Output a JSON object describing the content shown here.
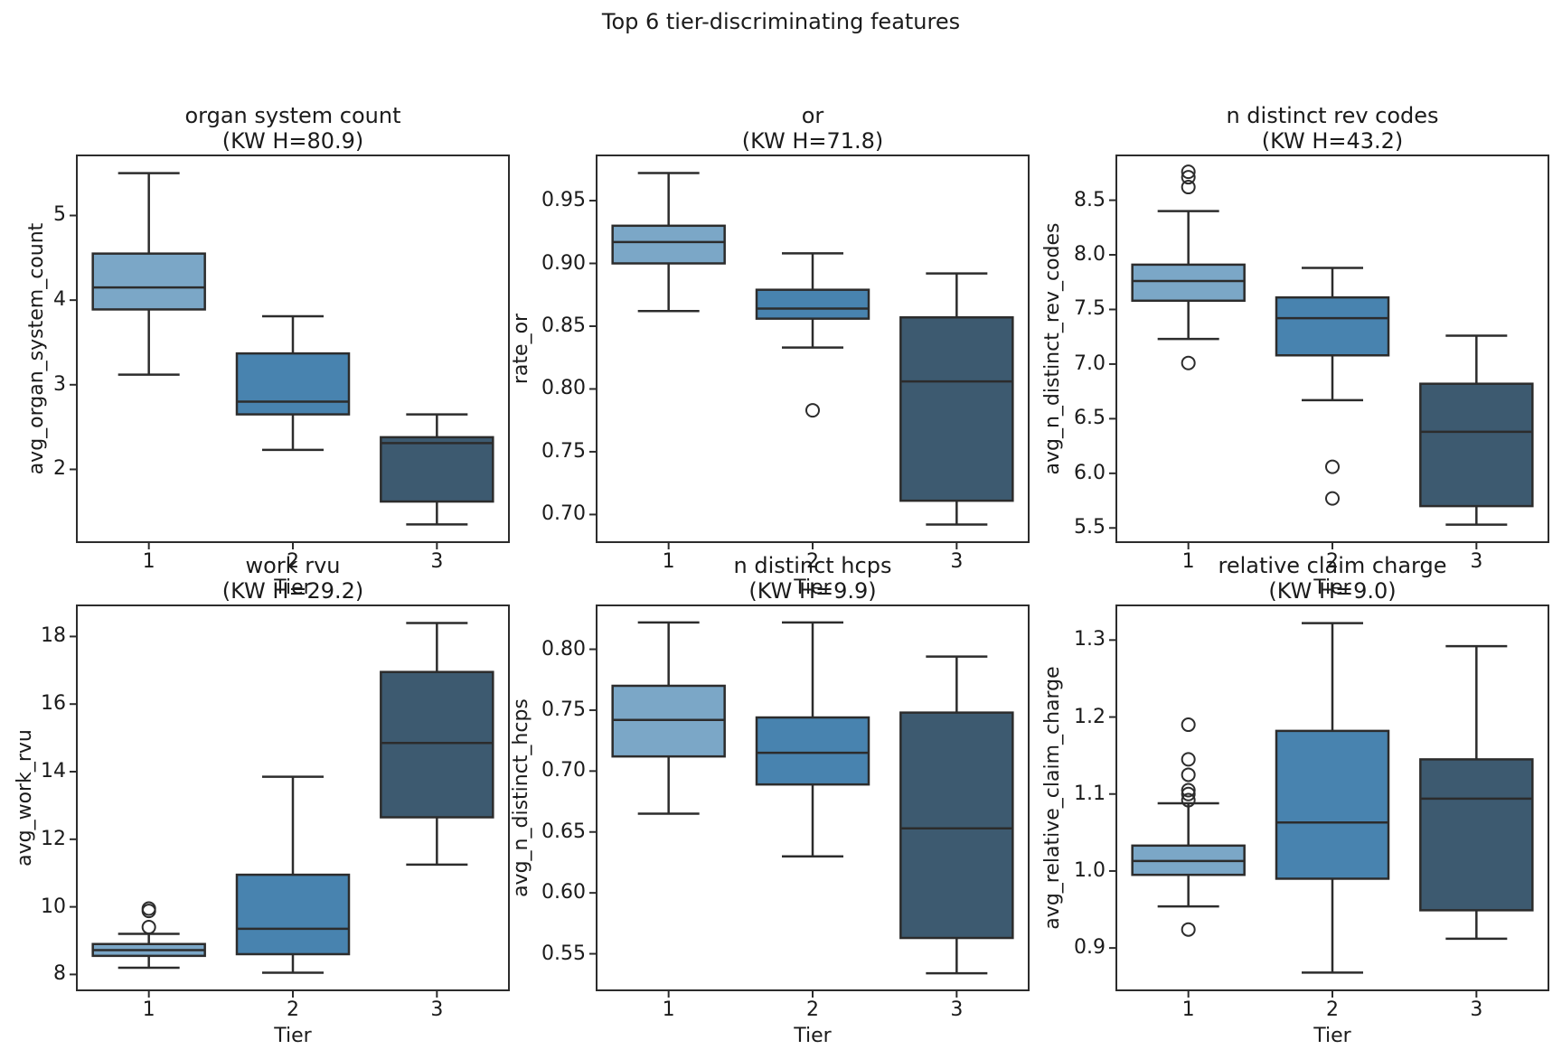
{
  "figure": {
    "suptitle": "Top 6 tier-discriminating features",
    "xlabel": "Tier",
    "tier_labels": [
      "1",
      "2",
      "3"
    ]
  },
  "colors": {
    "tier1": "#7BA7C7",
    "tier2": "#4883AF",
    "tier3": "#3D5A70",
    "line": "#2c2c2c",
    "text": "#1b1b1b",
    "background": "#ffffff"
  },
  "chart_data": [
    {
      "type": "box",
      "title": "organ system count",
      "subtitle": "(KW H=80.9)",
      "kw_h": 80.9,
      "xlabel": "Tier",
      "ylabel": "avg_organ_system_count",
      "categories": [
        "1",
        "2",
        "3"
      ],
      "ylim": [
        1.14,
        5.71
      ],
      "yticks": {
        "values": [
          2,
          3,
          4,
          5
        ],
        "labels": [
          "2",
          "3",
          "4",
          "5"
        ]
      },
      "grid": false,
      "boxes": [
        {
          "tier": "1",
          "whislo": 3.12,
          "q1": 3.89,
          "med": 4.15,
          "q3": 4.55,
          "whishi": 5.5,
          "outliers": []
        },
        {
          "tier": "2",
          "whislo": 2.23,
          "q1": 2.65,
          "med": 2.8,
          "q3": 3.37,
          "whishi": 3.81,
          "outliers": []
        },
        {
          "tier": "3",
          "whislo": 1.35,
          "q1": 1.62,
          "med": 2.31,
          "q3": 2.38,
          "whishi": 2.65,
          "outliers": []
        }
      ]
    },
    {
      "type": "box",
      "title": "or",
      "subtitle": "(KW H=71.8)",
      "kw_h": 71.8,
      "xlabel": "Tier",
      "ylabel": "rate_or",
      "categories": [
        "1",
        "2",
        "3"
      ],
      "ylim": [
        0.678,
        0.986
      ],
      "yticks": {
        "values": [
          0.7,
          0.75,
          0.8,
          0.85,
          0.9,
          0.95
        ],
        "labels": [
          "0.70",
          "0.75",
          "0.80",
          "0.85",
          "0.90",
          "0.95"
        ]
      },
      "grid": false,
      "boxes": [
        {
          "tier": "1",
          "whislo": 0.862,
          "q1": 0.9,
          "med": 0.917,
          "q3": 0.93,
          "whishi": 0.972,
          "outliers": []
        },
        {
          "tier": "2",
          "whislo": 0.833,
          "q1": 0.856,
          "med": 0.864,
          "q3": 0.879,
          "whishi": 0.908,
          "outliers": [
            0.783
          ]
        },
        {
          "tier": "3",
          "whislo": 0.692,
          "q1": 0.711,
          "med": 0.806,
          "q3": 0.857,
          "whishi": 0.892,
          "outliers": []
        }
      ]
    },
    {
      "type": "box",
      "title": "n distinct rev codes",
      "subtitle": "(KW H=43.2)",
      "kw_h": 43.2,
      "xlabel": "Tier",
      "ylabel": "avg_n_distinct_rev_codes",
      "categories": [
        "1",
        "2",
        "3"
      ],
      "ylim": [
        5.37,
        8.91
      ],
      "yticks": {
        "values": [
          5.5,
          6.0,
          6.5,
          7.0,
          7.5,
          8.0,
          8.5
        ],
        "labels": [
          "5.5",
          "6.0",
          "6.5",
          "7.0",
          "7.5",
          "8.0",
          "8.5"
        ]
      },
      "grid": false,
      "boxes": [
        {
          "tier": "1",
          "whislo": 7.23,
          "q1": 7.58,
          "med": 7.76,
          "q3": 7.91,
          "whishi": 8.4,
          "outliers": [
            8.76,
            8.71,
            8.62,
            7.01
          ]
        },
        {
          "tier": "2",
          "whislo": 6.67,
          "q1": 7.08,
          "med": 7.42,
          "q3": 7.61,
          "whishi": 7.88,
          "outliers": [
            6.06,
            5.77
          ]
        },
        {
          "tier": "3",
          "whislo": 5.53,
          "q1": 5.7,
          "med": 6.38,
          "q3": 6.82,
          "whishi": 7.26,
          "outliers": []
        }
      ]
    },
    {
      "type": "box",
      "title": "work rvu",
      "subtitle": "(KW H=29.2)",
      "kw_h": 29.2,
      "xlabel": "Tier",
      "ylabel": "avg_work_rvu",
      "categories": [
        "1",
        "2",
        "3"
      ],
      "ylim": [
        7.53,
        18.92
      ],
      "yticks": {
        "values": [
          8,
          10,
          12,
          14,
          16,
          18
        ],
        "labels": [
          "8",
          "10",
          "12",
          "14",
          "16",
          "18"
        ]
      },
      "grid": false,
      "boxes": [
        {
          "tier": "1",
          "whislo": 8.2,
          "q1": 8.55,
          "med": 8.72,
          "q3": 8.9,
          "whishi": 9.2,
          "outliers": [
            9.95,
            9.88,
            9.4
          ]
        },
        {
          "tier": "2",
          "whislo": 8.05,
          "q1": 8.6,
          "med": 9.35,
          "q3": 10.95,
          "whishi": 13.85,
          "outliers": []
        },
        {
          "tier": "3",
          "whislo": 11.25,
          "q1": 12.65,
          "med": 14.85,
          "q3": 16.95,
          "whishi": 18.4,
          "outliers": []
        }
      ]
    },
    {
      "type": "box",
      "title": "n distinct hcps",
      "subtitle": "(KW H=9.9)",
      "kw_h": 9.9,
      "xlabel": "Tier",
      "ylabel": "avg_n_distinct_hcps",
      "categories": [
        "1",
        "2",
        "3"
      ],
      "ylim": [
        0.52,
        0.836
      ],
      "yticks": {
        "values": [
          0.55,
          0.6,
          0.65,
          0.7,
          0.75,
          0.8
        ],
        "labels": [
          "0.55",
          "0.60",
          "0.65",
          "0.70",
          "0.75",
          "0.80"
        ]
      },
      "grid": false,
      "boxes": [
        {
          "tier": "1",
          "whislo": 0.665,
          "q1": 0.712,
          "med": 0.742,
          "q3": 0.77,
          "whishi": 0.822,
          "outliers": []
        },
        {
          "tier": "2",
          "whislo": 0.63,
          "q1": 0.689,
          "med": 0.715,
          "q3": 0.744,
          "whishi": 0.822,
          "outliers": []
        },
        {
          "tier": "3",
          "whislo": 0.534,
          "q1": 0.563,
          "med": 0.653,
          "q3": 0.748,
          "whishi": 0.794,
          "outliers": []
        }
      ]
    },
    {
      "type": "box",
      "title": "relative claim charge",
      "subtitle": "(KW H=9.0)",
      "kw_h": 9.0,
      "xlabel": "Tier",
      "ylabel": "avg_relative_claim_charge",
      "categories": [
        "1",
        "2",
        "3"
      ],
      "ylim": [
        0.845,
        1.345
      ],
      "yticks": {
        "values": [
          0.9,
          1.0,
          1.1,
          1.2,
          1.3
        ],
        "labels": [
          "0.9",
          "1.0",
          "1.1",
          "1.2",
          "1.3"
        ]
      },
      "grid": false,
      "boxes": [
        {
          "tier": "1",
          "whislo": 0.954,
          "q1": 0.995,
          "med": 1.013,
          "q3": 1.033,
          "whishi": 1.088,
          "outliers": [
            1.19,
            1.145,
            1.125,
            1.105,
            1.1,
            1.092,
            0.924
          ]
        },
        {
          "tier": "2",
          "whislo": 0.868,
          "q1": 0.99,
          "med": 1.063,
          "q3": 1.182,
          "whishi": 1.322,
          "outliers": []
        },
        {
          "tier": "3",
          "whislo": 0.912,
          "q1": 0.949,
          "med": 1.094,
          "q3": 1.145,
          "whishi": 1.292,
          "outliers": []
        }
      ]
    }
  ]
}
